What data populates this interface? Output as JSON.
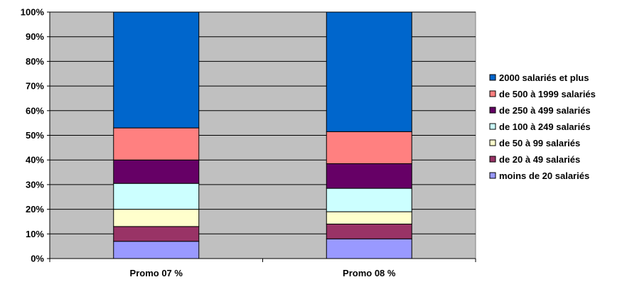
{
  "chart_data": {
    "type": "bar",
    "stacked": true,
    "percent_stacked": true,
    "title": "",
    "xlabel": "",
    "ylabel": "",
    "ylim": [
      0,
      100
    ],
    "y_ticks": [
      "0%",
      "10%",
      "20%",
      "30%",
      "40%",
      "50%",
      "60%",
      "70%",
      "80%",
      "90%",
      "100%"
    ],
    "grid": true,
    "plot_background": "#c0c0c0",
    "legend_position": "right",
    "categories": [
      "Promo 07 %",
      "Promo 08 %"
    ],
    "series": [
      {
        "name": "moins de 20 salariés",
        "color": "#9999ff",
        "values": [
          7,
          8
        ]
      },
      {
        "name": "de 20 à 49 salariés",
        "color": "#993366",
        "values": [
          6,
          6
        ]
      },
      {
        "name": "de 50 à 99 salariés",
        "color": "#ffffcc",
        "values": [
          7,
          5
        ]
      },
      {
        "name": "de 100 à 249 salariés",
        "color": "#ccffff",
        "values": [
          10.5,
          9.5
        ]
      },
      {
        "name": "de 250 à 499 salariés",
        "color": "#660066",
        "values": [
          9.5,
          10
        ]
      },
      {
        "name": "de 500 à 1999 salariés",
        "color": "#ff8080",
        "values": [
          13,
          13
        ]
      },
      {
        "name": "2000 salariés et plus",
        "color": "#0066cc",
        "values": [
          47,
          48.5
        ]
      }
    ]
  }
}
